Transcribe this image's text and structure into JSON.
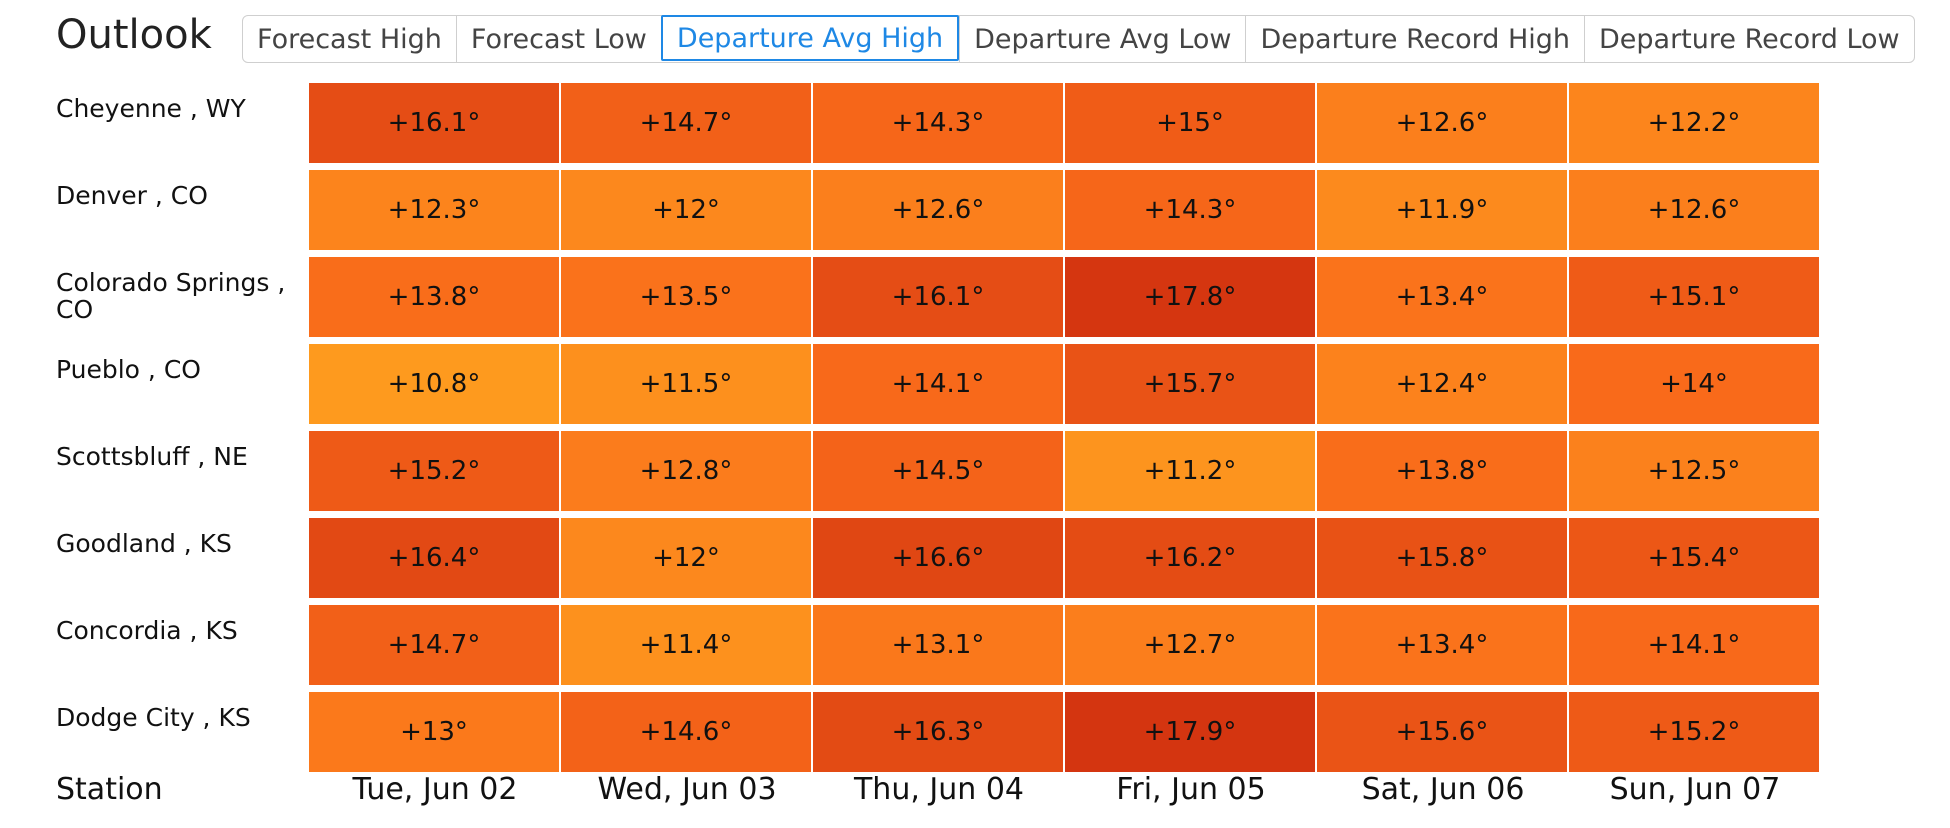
{
  "header": {
    "title": "Outlook",
    "tabs": [
      {
        "label": "Forecast High",
        "active": false
      },
      {
        "label": "Forecast Low",
        "active": false
      },
      {
        "label": "Departure Avg High",
        "active": true
      },
      {
        "label": "Departure Avg Low",
        "active": false
      },
      {
        "label": "Departure Record High",
        "active": false
      },
      {
        "label": "Departure Record Low",
        "active": false
      }
    ]
  },
  "table": {
    "station_header": "Station",
    "days": [
      "Tue, Jun 02",
      "Wed, Jun 03",
      "Thu, Jun 04",
      "Fri, Jun 05",
      "Sat, Jun 06",
      "Sun, Jun 07"
    ],
    "rows": [
      {
        "station": "Cheyenne , WY",
        "values": [
          "+16.1°",
          "+14.7°",
          "+14.3°",
          "+15°",
          "+12.6°",
          "+12.2°"
        ]
      },
      {
        "station": "Denver , CO",
        "values": [
          "+12.3°",
          "+12°",
          "+12.6°",
          "+14.3°",
          "+11.9°",
          "+12.6°"
        ]
      },
      {
        "station": "Colorado Springs , CO",
        "values": [
          "+13.8°",
          "+13.5°",
          "+16.1°",
          "+17.8°",
          "+13.4°",
          "+15.1°"
        ]
      },
      {
        "station": "Pueblo , CO",
        "values": [
          "+10.8°",
          "+11.5°",
          "+14.1°",
          "+15.7°",
          "+12.4°",
          "+14°"
        ]
      },
      {
        "station": "Scottsbluff , NE",
        "values": [
          "+15.2°",
          "+12.8°",
          "+14.5°",
          "+11.2°",
          "+13.8°",
          "+12.5°"
        ]
      },
      {
        "station": "Goodland , KS",
        "values": [
          "+16.4°",
          "+12°",
          "+16.6°",
          "+16.2°",
          "+15.8°",
          "+15.4°"
        ]
      },
      {
        "station": "Concordia , KS",
        "values": [
          "+14.7°",
          "+11.4°",
          "+13.1°",
          "+12.7°",
          "+13.4°",
          "+14.1°"
        ]
      },
      {
        "station": "Dodge City , KS",
        "values": [
          "+13°",
          "+14.6°",
          "+16.3°",
          "+17.9°",
          "+15.6°",
          "+15.2°"
        ]
      }
    ]
  },
  "colors": {
    "scale_low": "#fe9a1e",
    "scale_mid": "#f96a1a",
    "scale_high": "#d43510",
    "active_tab": "#1e88e5"
  }
}
